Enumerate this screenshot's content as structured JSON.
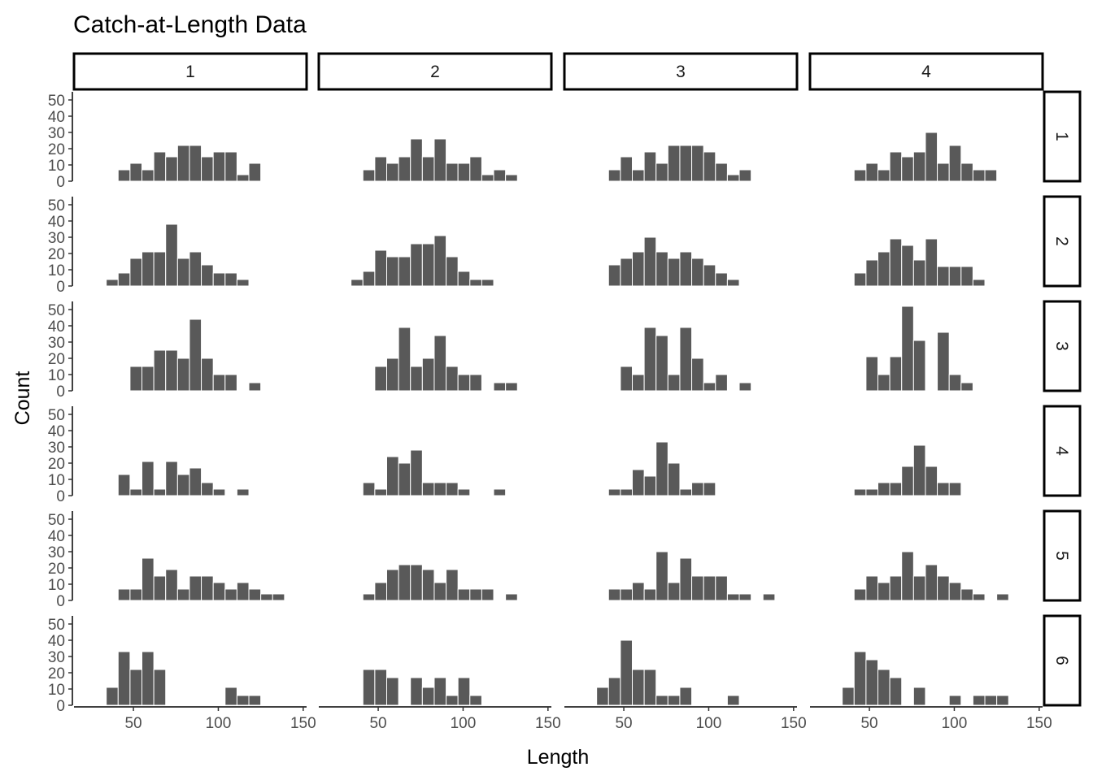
{
  "chart_data": {
    "type": "bar",
    "title": "Catch-at-Length Data",
    "xlabel": "Length",
    "ylabel": "Count",
    "xlim": [
      15,
      152
    ],
    "ylim": [
      0,
      55
    ],
    "x_ticks": [
      50,
      100,
      150
    ],
    "y_ticks": [
      0,
      10,
      20,
      30,
      40,
      50
    ],
    "bin_width": 7,
    "bin_starts": [
      34,
      41,
      48,
      55,
      62,
      69,
      76,
      83,
      90,
      97,
      104,
      111,
      118,
      125,
      132,
      139
    ],
    "bar_color": "#595959",
    "grid": false,
    "col_labels": [
      "1",
      "2",
      "3",
      "4"
    ],
    "row_labels": [
      "1",
      "2",
      "3",
      "4",
      "5",
      "6"
    ],
    "panels": [
      [
        {
          "counts": [
            0,
            7,
            11,
            7,
            18,
            15,
            22,
            22,
            15,
            18,
            18,
            4,
            11,
            0,
            0,
            0
          ]
        },
        {
          "counts": [
            0,
            7,
            15,
            11,
            15,
            26,
            15,
            26,
            11,
            11,
            15,
            4,
            7,
            4,
            0,
            0
          ]
        },
        {
          "counts": [
            0,
            7,
            15,
            7,
            18,
            11,
            22,
            22,
            22,
            18,
            11,
            4,
            7,
            0,
            0,
            0
          ]
        },
        {
          "counts": [
            0,
            7,
            11,
            7,
            18,
            15,
            18,
            30,
            11,
            22,
            11,
            7,
            7,
            0,
            0,
            0
          ]
        }
      ],
      [
        {
          "counts": [
            4,
            8,
            17,
            21,
            21,
            38,
            17,
            21,
            13,
            8,
            8,
            4,
            0,
            0,
            0,
            0
          ]
        },
        {
          "counts": [
            4,
            9,
            22,
            18,
            18,
            26,
            26,
            31,
            18,
            9,
            4,
            4,
            0,
            0,
            0,
            0
          ]
        },
        {
          "counts": [
            0,
            13,
            17,
            21,
            30,
            21,
            17,
            21,
            17,
            13,
            8,
            4,
            0,
            0,
            0,
            0
          ]
        },
        {
          "counts": [
            0,
            8,
            16,
            21,
            29,
            25,
            16,
            29,
            12,
            12,
            12,
            4,
            0,
            0,
            0,
            0
          ]
        }
      ],
      [
        {
          "counts": [
            0,
            0,
            15,
            15,
            25,
            25,
            20,
            44,
            20,
            10,
            10,
            0,
            5,
            0,
            0,
            0
          ]
        },
        {
          "counts": [
            0,
            0,
            15,
            20,
            39,
            15,
            20,
            34,
            15,
            10,
            10,
            0,
            5,
            5,
            0,
            0
          ]
        },
        {
          "counts": [
            0,
            0,
            15,
            10,
            39,
            34,
            10,
            39,
            20,
            5,
            10,
            0,
            5,
            0,
            0,
            0
          ]
        },
        {
          "counts": [
            0,
            0,
            21,
            10,
            21,
            52,
            31,
            0,
            36,
            10,
            5,
            0,
            0,
            0,
            0,
            0
          ]
        }
      ],
      [
        {
          "counts": [
            0,
            13,
            4,
            21,
            4,
            21,
            13,
            17,
            8,
            4,
            0,
            4,
            0,
            0,
            0,
            0
          ]
        },
        {
          "counts": [
            0,
            8,
            4,
            24,
            20,
            28,
            8,
            8,
            8,
            4,
            0,
            0,
            4,
            0,
            0,
            0
          ]
        },
        {
          "counts": [
            0,
            4,
            4,
            16,
            12,
            33,
            20,
            4,
            8,
            8,
            0,
            0,
            0,
            0,
            0,
            0
          ]
        },
        {
          "counts": [
            0,
            4,
            4,
            8,
            8,
            18,
            31,
            18,
            8,
            8,
            0,
            0,
            0,
            0,
            0,
            0
          ]
        }
      ],
      [
        {
          "counts": [
            0,
            7,
            7,
            26,
            15,
            19,
            7,
            15,
            15,
            11,
            7,
            11,
            7,
            4,
            4,
            0
          ]
        },
        {
          "counts": [
            0,
            4,
            11,
            19,
            22,
            22,
            19,
            11,
            19,
            7,
            7,
            7,
            0,
            4,
            0,
            0
          ]
        },
        {
          "counts": [
            0,
            7,
            7,
            11,
            7,
            30,
            11,
            26,
            15,
            15,
            15,
            4,
            4,
            0,
            4,
            0
          ]
        },
        {
          "counts": [
            0,
            7,
            15,
            11,
            15,
            30,
            15,
            22,
            15,
            11,
            7,
            4,
            0,
            4,
            0,
            0
          ]
        }
      ],
      [
        {
          "counts": [
            11,
            33,
            22,
            33,
            22,
            0,
            0,
            0,
            0,
            0,
            11,
            6,
            6,
            0,
            0,
            0
          ]
        },
        {
          "counts": [
            0,
            22,
            22,
            17,
            0,
            17,
            11,
            17,
            6,
            17,
            6,
            0,
            0,
            0,
            0,
            0
          ]
        },
        {
          "counts": [
            11,
            17,
            40,
            22,
            22,
            6,
            6,
            11,
            0,
            0,
            0,
            6,
            0,
            0,
            0,
            0
          ]
        },
        {
          "counts": [
            11,
            33,
            28,
            22,
            17,
            0,
            11,
            0,
            0,
            6,
            0,
            6,
            6,
            6,
            0,
            0
          ]
        }
      ]
    ]
  }
}
